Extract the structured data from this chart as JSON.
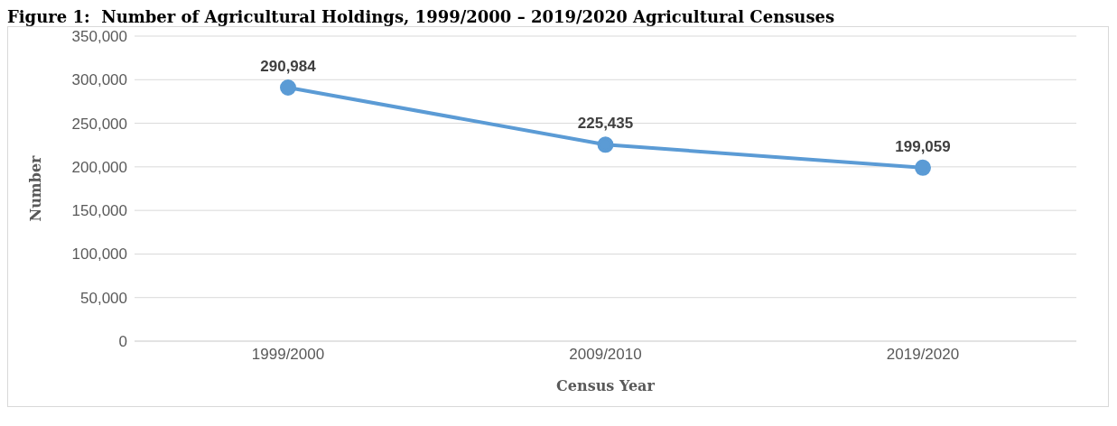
{
  "chart_data": {
    "type": "line",
    "title": "Figure 1:  Number of Agricultural Holdings, 1999/2000 – 2019/2020 Agricultural Censuses",
    "xlabel": "Census Year",
    "ylabel": "Number",
    "categories": [
      "1999/2000",
      "2009/2010",
      "2019/2020"
    ],
    "series": [
      {
        "color": "#5b9bd5",
        "values": [
          290984,
          225435,
          199059
        ],
        "value_labels": [
          "290,984",
          "225,435",
          "199,059"
        ]
      }
    ],
    "ylim": [
      0,
      350000
    ],
    "yticks": [
      0,
      {
        "value": 50000,
        "label": "50,000"
      },
      {
        "value": 100000,
        "label": "100,000"
      },
      {
        "value": 150000,
        "label": "150,000"
      },
      {
        "value": 200000,
        "label": "200,000"
      },
      {
        "value": 250000,
        "label": "250,000"
      },
      {
        "value": 300000,
        "label": "300,000"
      },
      {
        "value": 350000,
        "label": "350,000"
      }
    ],
    "grid": "y",
    "marker": "circle",
    "line_style": "solid"
  }
}
